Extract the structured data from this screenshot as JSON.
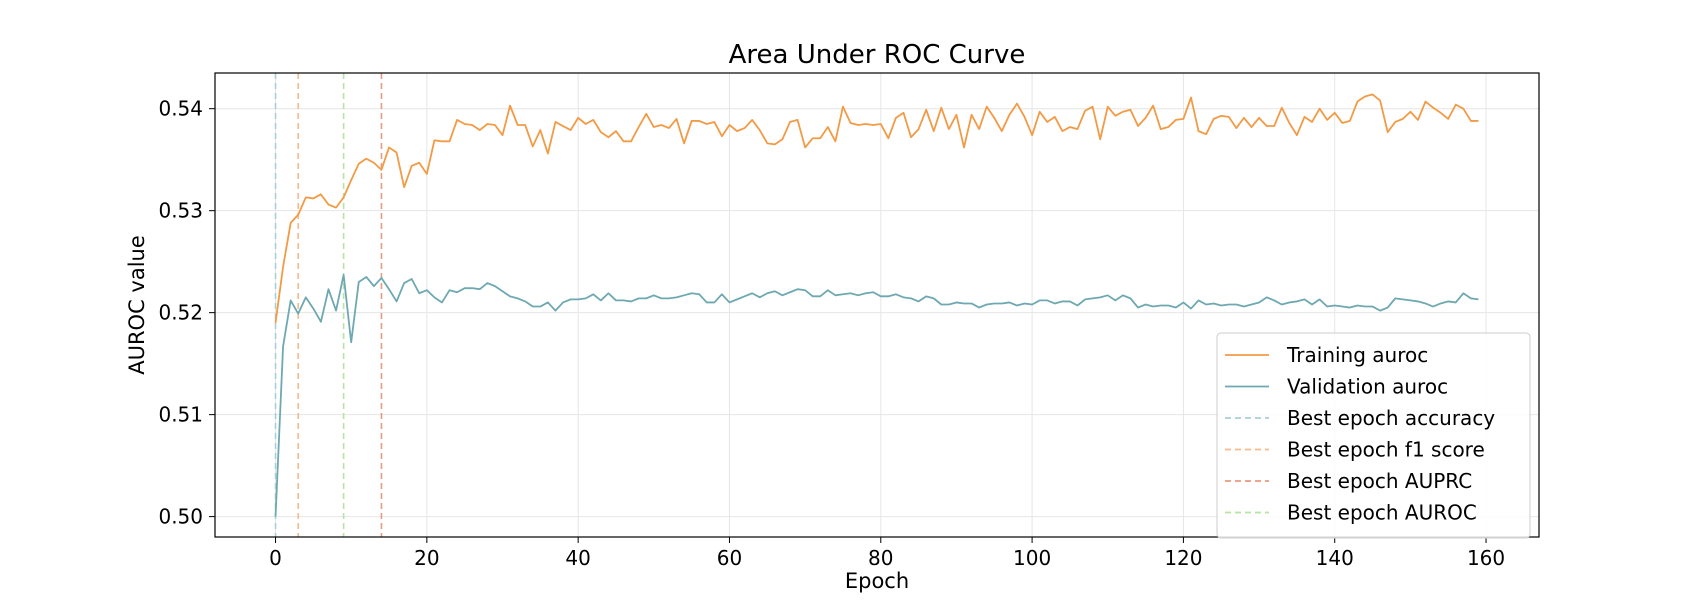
{
  "chart_data": {
    "type": "line",
    "title": "Area Under ROC Curve",
    "xlabel": "Epoch",
    "ylabel": "AUROC value",
    "xlim": [
      -8,
      167
    ],
    "ylim": [
      0.498,
      0.5435
    ],
    "xticks": [
      0,
      20,
      40,
      60,
      80,
      100,
      120,
      140,
      160
    ],
    "yticks": [
      0.5,
      0.51,
      0.52,
      0.53,
      0.54
    ],
    "xtick_labels": [
      "0",
      "20",
      "40",
      "60",
      "80",
      "100",
      "120",
      "140",
      "160"
    ],
    "ytick_labels": [
      "0.50",
      "0.51",
      "0.52",
      "0.53",
      "0.54"
    ],
    "grid": true,
    "legend_position": "lower-right",
    "series": [
      {
        "name": "Training auroc",
        "color": "#f39a45",
        "x_start": 0,
        "values": [
          0.519,
          0.5245,
          0.5288,
          0.5296,
          0.5313,
          0.5312,
          0.5316,
          0.5306,
          0.5303,
          0.5313,
          0.533,
          0.5346,
          0.5351,
          0.5347,
          0.534,
          0.5362,
          0.5357,
          0.5323,
          0.5344,
          0.5347,
          0.5336,
          0.5369,
          0.5368,
          0.5368,
          0.5389,
          0.5385,
          0.5384,
          0.5379,
          0.5385,
          0.5384,
          0.5374,
          0.5403,
          0.5384,
          0.5384,
          0.5363,
          0.5379,
          0.5356,
          0.5387,
          0.5383,
          0.5379,
          0.5391,
          0.5385,
          0.5389,
          0.5377,
          0.5372,
          0.5378,
          0.5368,
          0.5368,
          0.5382,
          0.5395,
          0.5382,
          0.5384,
          0.5381,
          0.539,
          0.5366,
          0.5388,
          0.5388,
          0.5385,
          0.5387,
          0.5373,
          0.5384,
          0.5378,
          0.5381,
          0.5389,
          0.5379,
          0.5366,
          0.5365,
          0.537,
          0.5387,
          0.5389,
          0.5362,
          0.5371,
          0.5371,
          0.5382,
          0.5368,
          0.5402,
          0.5386,
          0.5384,
          0.5385,
          0.5384,
          0.5385,
          0.5371,
          0.5391,
          0.5396,
          0.5372,
          0.538,
          0.5399,
          0.5378,
          0.5401,
          0.538,
          0.5394,
          0.5362,
          0.5394,
          0.538,
          0.5402,
          0.5391,
          0.5378,
          0.5394,
          0.5405,
          0.5392,
          0.5374,
          0.5397,
          0.5387,
          0.5392,
          0.5378,
          0.5382,
          0.538,
          0.5398,
          0.5402,
          0.537,
          0.5402,
          0.5393,
          0.5397,
          0.5399,
          0.5383,
          0.5391,
          0.5403,
          0.538,
          0.5382,
          0.5389,
          0.539,
          0.5411,
          0.5378,
          0.5375,
          0.539,
          0.5393,
          0.5392,
          0.5381,
          0.5391,
          0.5382,
          0.5391,
          0.5383,
          0.5383,
          0.5401,
          0.5386,
          0.5374,
          0.5392,
          0.5387,
          0.54,
          0.5389,
          0.5396,
          0.5386,
          0.5388,
          0.5407,
          0.5412,
          0.5414,
          0.5408,
          0.5377,
          0.5387,
          0.539,
          0.5397,
          0.5389,
          0.5407,
          0.5401,
          0.5396,
          0.539,
          0.5404,
          0.54,
          0.5388,
          0.5388
        ]
      },
      {
        "name": "Validation auroc",
        "color": "#6ea8b0",
        "x_start": 0,
        "values": [
          0.5,
          0.5167,
          0.5212,
          0.5199,
          0.5215,
          0.5204,
          0.5191,
          0.5223,
          0.5202,
          0.5237,
          0.5171,
          0.523,
          0.5235,
          0.5226,
          0.5234,
          0.5223,
          0.5211,
          0.5229,
          0.5233,
          0.5219,
          0.5222,
          0.5215,
          0.521,
          0.5222,
          0.522,
          0.5224,
          0.5224,
          0.5223,
          0.5229,
          0.5226,
          0.5221,
          0.5216,
          0.5214,
          0.5211,
          0.5206,
          0.5206,
          0.521,
          0.5202,
          0.521,
          0.5213,
          0.5213,
          0.5214,
          0.5218,
          0.5212,
          0.5219,
          0.5212,
          0.5212,
          0.5211,
          0.5214,
          0.5214,
          0.5217,
          0.5214,
          0.5214,
          0.5215,
          0.5217,
          0.5219,
          0.5218,
          0.521,
          0.521,
          0.5218,
          0.521,
          0.5213,
          0.5216,
          0.5219,
          0.5215,
          0.5219,
          0.5221,
          0.5217,
          0.522,
          0.5223,
          0.5222,
          0.5216,
          0.5216,
          0.5222,
          0.5217,
          0.5218,
          0.5219,
          0.5217,
          0.5219,
          0.522,
          0.5216,
          0.5216,
          0.5218,
          0.5215,
          0.5214,
          0.5211,
          0.5216,
          0.5214,
          0.5208,
          0.5208,
          0.521,
          0.5209,
          0.5209,
          0.5205,
          0.5208,
          0.5209,
          0.5209,
          0.521,
          0.5207,
          0.5209,
          0.5208,
          0.5212,
          0.5212,
          0.5209,
          0.5211,
          0.5211,
          0.5207,
          0.5213,
          0.5214,
          0.5215,
          0.5217,
          0.5212,
          0.5217,
          0.5214,
          0.5205,
          0.5208,
          0.5206,
          0.5207,
          0.5207,
          0.5205,
          0.521,
          0.5204,
          0.5212,
          0.5208,
          0.5209,
          0.5207,
          0.5208,
          0.5208,
          0.5206,
          0.5208,
          0.521,
          0.5215,
          0.5212,
          0.5208,
          0.521,
          0.5211,
          0.5213,
          0.5208,
          0.5213,
          0.5206,
          0.5207,
          0.5206,
          0.5205,
          0.5207,
          0.5206,
          0.5206,
          0.5202,
          0.5205,
          0.5214,
          0.5213,
          0.5212,
          0.5211,
          0.5209,
          0.5206,
          0.5209,
          0.5211,
          0.521,
          0.5219,
          0.5214,
          0.5213
        ]
      }
    ],
    "vlines": [
      {
        "name": "Best epoch accuracy",
        "x": 0,
        "color": "#a9cfd6"
      },
      {
        "name": "Best epoch f1 score",
        "x": 3,
        "color": "#f9b98a"
      },
      {
        "name": "Best epoch AUPRC",
        "x": 14,
        "color": "#ea9a80"
      },
      {
        "name": "Best epoch AUROC",
        "x": 9,
        "color": "#b7e3a3"
      }
    ],
    "legend_entries": [
      {
        "label": "Training auroc",
        "color": "#f39a45",
        "style": "solid"
      },
      {
        "label": "Validation auroc",
        "color": "#6ea8b0",
        "style": "solid"
      },
      {
        "label": "Best epoch accuracy",
        "color": "#a9cfd6",
        "style": "dashed"
      },
      {
        "label": "Best epoch f1 score",
        "color": "#f9b98a",
        "style": "dashed"
      },
      {
        "label": "Best epoch AUPRC",
        "color": "#ea9a80",
        "style": "dashed"
      },
      {
        "label": "Best epoch AUROC",
        "color": "#b7e3a3",
        "style": "dashed"
      }
    ]
  }
}
